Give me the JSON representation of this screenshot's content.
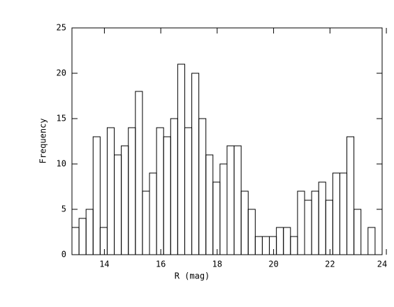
{
  "chart_data": {
    "type": "histogram",
    "xlabel": "R (mag)",
    "ylabel": "Frequency",
    "bins": [
      12.85,
      13.1,
      13.35,
      13.6,
      13.85,
      14.1,
      14.35,
      14.6,
      14.85,
      15.1,
      15.35,
      15.6,
      15.85,
      16.1,
      16.35,
      16.6,
      16.85,
      17.1,
      17.35,
      17.6,
      17.85,
      18.1,
      18.35,
      18.6,
      18.85,
      19.1,
      19.35,
      19.6,
      19.85,
      20.1,
      20.35,
      20.6,
      20.85,
      21.1,
      21.35,
      21.6,
      21.85,
      22.1,
      22.35,
      22.6,
      22.85,
      23.1,
      23.35,
      23.6
    ],
    "values": [
      3,
      4,
      5,
      13,
      3,
      14,
      11,
      12,
      14,
      18,
      7,
      9,
      14,
      13,
      15,
      21,
      14,
      20,
      15,
      11,
      8,
      10,
      12,
      12,
      7,
      5,
      2,
      2,
      2,
      3,
      3,
      2,
      7,
      6,
      7,
      8,
      6,
      9,
      9,
      13,
      5,
      0,
      3
    ],
    "color": "#000000",
    "xlim": [
      12.85,
      23.85
    ],
    "xticks": [
      14,
      16,
      18,
      20,
      22,
      24
    ],
    "ylim": [
      0,
      25
    ],
    "yticks": [
      0,
      5,
      10,
      15,
      20,
      25
    ]
  }
}
